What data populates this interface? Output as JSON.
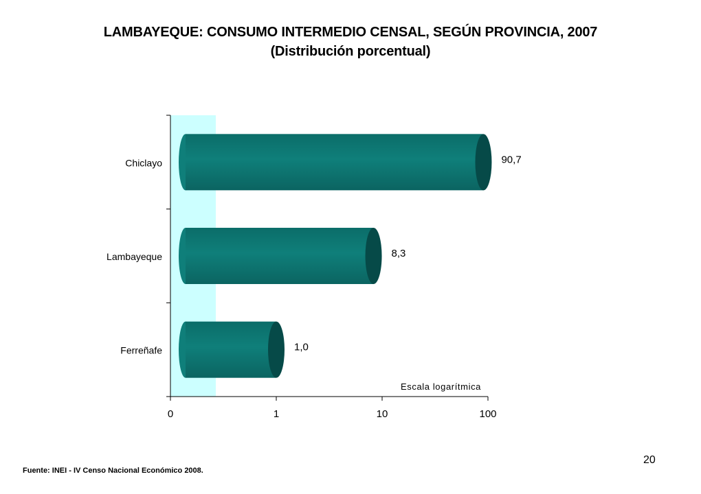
{
  "chart_data": {
    "type": "bar",
    "orientation": "horizontal",
    "style": "3d-cylinder",
    "title": "LAMBAYEQUE: CONSUMO INTERMEDIO CENSAL, SEGÚN PROVINCIA, 2007",
    "subtitle": "(Distribución porcentual)",
    "categories": [
      "Chiclayo",
      "Lambayeque",
      "Ferreñafe"
    ],
    "values": [
      90.7,
      8.3,
      1.0
    ],
    "data_labels": [
      "90,7",
      "8,3",
      "1,0"
    ],
    "x_scale": "log",
    "x_ticks": [
      "0",
      "1",
      "10",
      "100"
    ],
    "annotation": "Escala logarítmica",
    "grid": false,
    "legend": "none",
    "colors": {
      "bar_body": "#0f7f7a",
      "bar_cap": "#064a48",
      "band": "#ccffff"
    }
  },
  "footer": {
    "source": "Fuente: INEI - IV Censo Nacional Económico 2008.",
    "page_number": "20"
  }
}
